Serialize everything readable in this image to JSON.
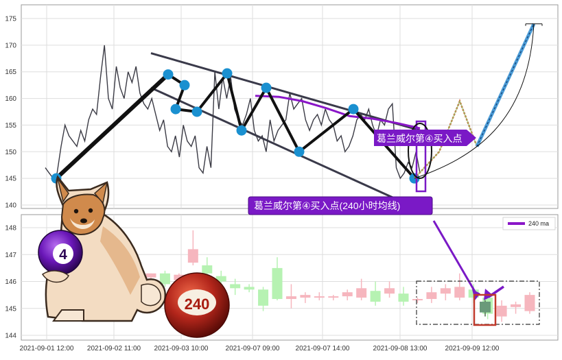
{
  "colors": {
    "price_line": "#3a3a44",
    "pattern_line": "#111111",
    "channel_line": "#3a3a4a",
    "pivot": "#1a90d0",
    "ma240": "#8a16c8",
    "callout_bg": "#7a19c6",
    "highlight_box": "#c0392b",
    "bull_candle": "#f6b6be",
    "bear_candle": "#b6f2b2",
    "forecast_fill": "#4a9bd6",
    "grid": "#dddddd"
  },
  "icons": {
    "mascot": "shiba-dog-icon",
    "ball_4": "purple-billiard-ball-4-icon",
    "ball_240": "red-billiard-ball-240-icon"
  },
  "callouts": {
    "upper": "葛兰威尔第④买入点",
    "lower": "葛兰威尔第④买入点(240小时均线)"
  },
  "balls": {
    "purple": "4",
    "red": "240"
  },
  "chart_data": [
    {
      "type": "line",
      "title": "",
      "xlabel": "",
      "ylabel": "",
      "ylim": [
        139.5,
        176.5
      ],
      "yticks": [
        140,
        145,
        150,
        155,
        160,
        165,
        170,
        175
      ],
      "grid": true,
      "series": [
        {
          "values": [
            147,
            146,
            145,
            146,
            151,
            155,
            153,
            152,
            151,
            154,
            152,
            156,
            158,
            157,
            164,
            170,
            160,
            158,
            166,
            162,
            160,
            165,
            163,
            166,
            161,
            159,
            158,
            160,
            157,
            154,
            156,
            151,
            150,
            153,
            149,
            155,
            152,
            151,
            153,
            147,
            146,
            151,
            147,
            165,
            158,
            164,
            160,
            164,
            158,
            156,
            155,
            157,
            160,
            154,
            152,
            153,
            150,
            156,
            152,
            154,
            155,
            156,
            161,
            158,
            159,
            160,
            156,
            154,
            156,
            157,
            155,
            158,
            156,
            155,
            152,
            153,
            150,
            151,
            153,
            156,
            157,
            156,
            158,
            155,
            153,
            156,
            155,
            158,
            159,
            147,
            145,
            146,
            148,
            147,
            150,
            146
          ]
        }
      ],
      "pattern_pivots": [
        145,
        164.5,
        162.5,
        158,
        157.5,
        164.7,
        154,
        162,
        150,
        158,
        145
      ],
      "channel": {
        "upper": [
          168.5,
          154
        ],
        "lower": [
          162,
          140.5
        ]
      },
      "ma240": [
        160.5,
        160.3,
        159.5,
        158.2,
        156.7,
        156.2,
        155.4,
        154.4
      ],
      "forecast": [
        145,
        150,
        159.5,
        151,
        174
      ]
    },
    {
      "type": "candlestick",
      "title": "",
      "ylim": [
        143.8,
        148.7
      ],
      "yticks": [
        144,
        145,
        146,
        147,
        148
      ],
      "categories": [
        "2021-09-01 12:00",
        "2021-09-02 11:00",
        "2021-09-03 10:00",
        "2021-09-07 09:00",
        "2021-09-07 14:00",
        "2021-09-08 13:00",
        "2021-09-09 12:00"
      ],
      "grid": true,
      "legend": {
        "entries": [
          "240 ma"
        ],
        "placement": "top-right"
      },
      "candles": [
        {
          "o": 146.15,
          "c": 146.3,
          "h": 146.3,
          "l": 146.0
        },
        {
          "o": 146.3,
          "c": 145.9,
          "h": 146.4,
          "l": 145.8
        },
        {
          "o": 146.05,
          "c": 146.25,
          "h": 146.3,
          "l": 145.95
        },
        {
          "o": 146.7,
          "c": 147.2,
          "h": 147.9,
          "l": 146.6
        },
        {
          "o": 146.6,
          "c": 146.3,
          "h": 146.9,
          "l": 146.2
        },
        {
          "o": 146.2,
          "c": 146.0,
          "h": 146.4,
          "l": 145.9
        },
        {
          "o": 145.9,
          "c": 145.75,
          "h": 146.1,
          "l": 145.5
        },
        {
          "o": 145.8,
          "c": 145.7,
          "h": 145.9,
          "l": 145.6
        },
        {
          "o": 145.7,
          "c": 145.1,
          "h": 145.8,
          "l": 144.9
        },
        {
          "o": 146.5,
          "c": 145.35,
          "h": 146.9,
          "l": 145.3
        },
        {
          "o": 145.35,
          "c": 145.45,
          "h": 145.9,
          "l": 145.0
        },
        {
          "o": 145.4,
          "c": 145.5,
          "h": 145.6,
          "l": 145.2
        },
        {
          "o": 145.4,
          "c": 145.45,
          "h": 145.6,
          "l": 145.3
        },
        {
          "o": 145.4,
          "c": 145.45,
          "h": 145.5,
          "l": 145.3
        },
        {
          "o": 145.45,
          "c": 145.6,
          "h": 145.7,
          "l": 145.3
        },
        {
          "o": 145.4,
          "c": 145.75,
          "h": 146.1,
          "l": 145.3
        },
        {
          "o": 145.65,
          "c": 145.25,
          "h": 146.0,
          "l": 145.1
        },
        {
          "o": 145.55,
          "c": 145.75,
          "h": 146.0,
          "l": 145.4
        },
        {
          "o": 145.55,
          "c": 145.25,
          "h": 145.8,
          "l": 145.1
        },
        {
          "o": 145.3,
          "c": 145.35,
          "h": 145.4,
          "l": 145.2
        },
        {
          "o": 145.35,
          "c": 145.6,
          "h": 145.8,
          "l": 145.2
        },
        {
          "o": 145.55,
          "c": 145.75,
          "h": 145.9,
          "l": 145.3
        },
        {
          "o": 145.4,
          "c": 145.8,
          "h": 146.3,
          "l": 145.3
        },
        {
          "o": 145.7,
          "c": 145.4,
          "h": 145.9,
          "l": 145.2
        },
        {
          "o": 145.4,
          "c": 144.8,
          "h": 145.5,
          "l": 144.6
        },
        {
          "o": 144.7,
          "c": 145.1,
          "h": 145.3,
          "l": 144.5
        },
        {
          "o": 145.05,
          "c": 145.15,
          "h": 145.25,
          "l": 144.8
        },
        {
          "o": 144.9,
          "c": 145.5,
          "h": 145.6,
          "l": 144.8
        }
      ]
    }
  ]
}
